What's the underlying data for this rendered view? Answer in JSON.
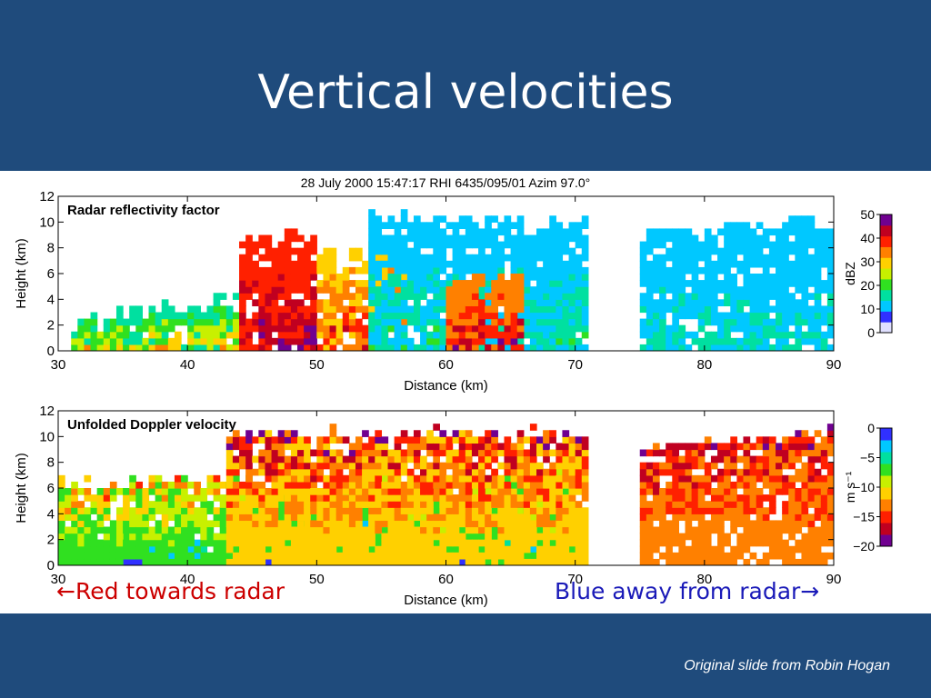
{
  "slide": {
    "title": "Vertical velocities",
    "credit": "Original slide from Robin Hogan",
    "annotation_left": {
      "arrow": "←",
      "text": "Red towards radar",
      "color": "#cc0000"
    },
    "annotation_right": {
      "text": "Blue away from radar",
      "arrow": "→",
      "color": "#1a1ab8"
    },
    "background_color": "#1f4b7c"
  },
  "figure_header": "28 July 2000 15:47:17 RHI 6435/095/01 Azim  97.0°",
  "chart_data": [
    {
      "type": "heatmap",
      "title": "Radar reflectivity factor",
      "xlabel": "Distance (km)",
      "ylabel": "Height (km)",
      "xlim": [
        30,
        90
      ],
      "ylim": [
        0,
        12
      ],
      "xticks": [
        30,
        40,
        50,
        60,
        70,
        80,
        90
      ],
      "yticks": [
        0,
        2,
        4,
        6,
        8,
        10,
        12
      ],
      "colorbar": {
        "label": "dBZ",
        "ticks": [
          0,
          10,
          20,
          30,
          40,
          50
        ],
        "range": [
          0,
          50
        ]
      },
      "colormap": [
        "#e0e0ff",
        "#3030ff",
        "#00c8ff",
        "#00e0a0",
        "#30e020",
        "#c8f000",
        "#ffd000",
        "#ff8000",
        "#ff2000",
        "#c00020",
        "#700090"
      ],
      "regions": [
        {
          "name": "low-cells",
          "x": [
            31,
            44
          ],
          "top": [
            2,
            4
          ],
          "value_range": [
            5,
            35
          ]
        },
        {
          "name": "main-core",
          "x": [
            44,
            50
          ],
          "top": [
            8,
            9
          ],
          "value_range": [
            30,
            50
          ]
        },
        {
          "name": "mid-convection",
          "x": [
            50,
            57
          ],
          "top": [
            7,
            8
          ],
          "value_range": [
            20,
            45
          ]
        },
        {
          "name": "anvil",
          "x": [
            54,
            71
          ],
          "top": [
            10,
            10
          ],
          "value_range": [
            5,
            20
          ]
        },
        {
          "name": "secondary-core",
          "x": [
            60,
            66
          ],
          "top": [
            5,
            6
          ],
          "value_range": [
            25,
            48
          ]
        },
        {
          "name": "detached-anvil",
          "x": [
            75,
            90
          ],
          "top": [
            9,
            10
          ],
          "value_range": [
            5,
            18
          ]
        }
      ]
    },
    {
      "type": "heatmap",
      "title": "Unfolded Doppler velocity",
      "xlabel": "Distance (km)",
      "ylabel": "Height (km)",
      "xlim": [
        30,
        90
      ],
      "ylim": [
        0,
        12
      ],
      "xticks": [
        30,
        40,
        50,
        60,
        70,
        80,
        90
      ],
      "yticks": [
        0,
        2,
        4,
        6,
        8,
        10,
        12
      ],
      "colorbar": {
        "label": "m s⁻¹",
        "ticks": [
          0,
          -5,
          -10,
          -15,
          -20
        ],
        "range": [
          -20,
          0
        ]
      },
      "colormap": [
        "#3030ff",
        "#00c8ff",
        "#00e0a0",
        "#30e020",
        "#c8f000",
        "#ffd000",
        "#ff8000",
        "#ff2000",
        "#c00020",
        "#700090"
      ],
      "regions": [
        {
          "name": "low-level-inflow",
          "x": [
            30,
            70
          ],
          "top": [
            2,
            3
          ],
          "value_range": [
            -8,
            -2
          ]
        },
        {
          "name": "mid-level",
          "x": [
            30,
            70
          ],
          "top": [
            6,
            7
          ],
          "value_range": [
            -14,
            -6
          ]
        },
        {
          "name": "upper-level",
          "x": [
            43,
            71
          ],
          "top": [
            10,
            10
          ],
          "value_range": [
            -18,
            -10
          ]
        },
        {
          "name": "detached-anvil",
          "x": [
            75,
            90
          ],
          "top": [
            9,
            10
          ],
          "value_range": [
            -18,
            -12
          ]
        }
      ]
    }
  ]
}
